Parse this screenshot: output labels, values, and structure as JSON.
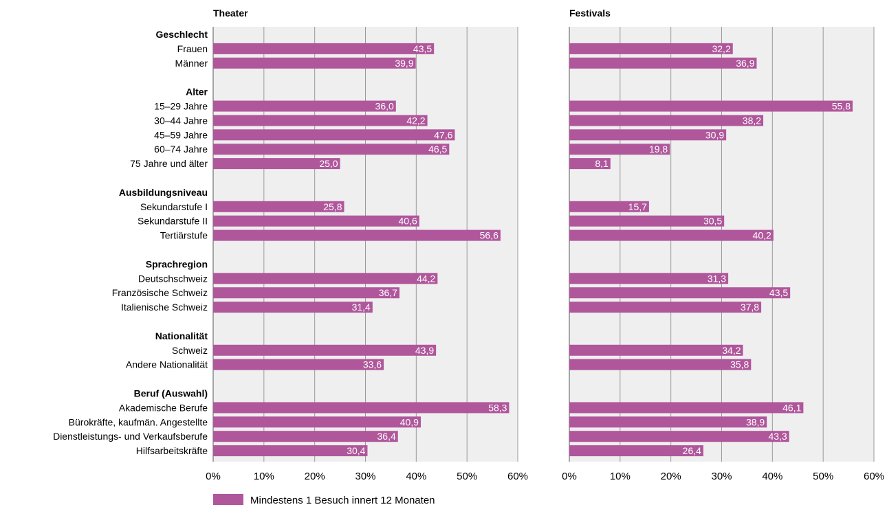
{
  "colors": {
    "bar": "#b0579c",
    "plot_background": "#efefef",
    "grid": "#9a9a9a",
    "axis": "#555555",
    "value_text": "#ffffff"
  },
  "chart_data": {
    "type": "bar",
    "orientation": "horizontal",
    "grid": true,
    "legend_position": "bottom-left",
    "xlim": [
      0,
      60
    ],
    "x_ticks": [
      "0%",
      "10%",
      "20%",
      "30%",
      "40%",
      "50%",
      "60%"
    ],
    "legend": [
      "Mindestens 1 Besuch innert 12 Monaten"
    ],
    "groups": [
      {
        "label": "Geschlecht",
        "categories": [
          "Frauen",
          "Männer"
        ]
      },
      {
        "label": "Alter",
        "categories": [
          "15–29 Jahre",
          "30–44 Jahre",
          "45–59 Jahre",
          "60–74 Jahre",
          "75 Jahre und älter"
        ]
      },
      {
        "label": "Ausbildungsniveau",
        "categories": [
          "Sekundarstufe I",
          "Sekundarstufe II",
          "Tertiärstufe"
        ]
      },
      {
        "label": "Sprachregion",
        "categories": [
          "Deutschschweiz",
          "Französische Schweiz",
          "Italienische Schweiz"
        ]
      },
      {
        "label": "Nationalität",
        "categories": [
          "Schweiz",
          "Andere Nationalität"
        ]
      },
      {
        "label": "Beruf (Auswahl)",
        "categories": [
          "Akademische Berufe",
          "Bürokräfte, kaufmän. Angestellte",
          "Dienstleistungs- und Verkaufsberufe",
          "Hilfsarbeitskräfte"
        ]
      }
    ],
    "panels": [
      {
        "title": "Theater",
        "values": [
          43.5,
          39.9,
          36.0,
          42.2,
          47.6,
          46.5,
          25.0,
          25.8,
          40.6,
          56.6,
          44.2,
          36.7,
          31.4,
          43.9,
          33.6,
          58.3,
          40.9,
          36.4,
          30.4
        ],
        "labels": [
          "43,5",
          "39,9",
          "36,0",
          "42,2",
          "47,6",
          "46,5",
          "25,0",
          "25,8",
          "40,6",
          "56,6",
          "44,2",
          "36,7",
          "31,4",
          "43,9",
          "33,6",
          "58,3",
          "40,9",
          "36,4",
          "30,4"
        ]
      },
      {
        "title": "Festivals",
        "values": [
          32.2,
          36.9,
          55.8,
          38.2,
          30.9,
          19.8,
          8.1,
          15.7,
          30.5,
          40.2,
          31.3,
          43.5,
          37.8,
          34.2,
          35.8,
          46.1,
          38.9,
          43.3,
          26.4
        ],
        "labels": [
          "32,2",
          "36,9",
          "55,8",
          "38,2",
          "30,9",
          "19,8",
          "8,1",
          "15,7",
          "30,5",
          "40,2",
          "31,3",
          "43,5",
          "37,8",
          "34,2",
          "35,8",
          "46,1",
          "38,9",
          "43,3",
          "26,4"
        ]
      }
    ]
  }
}
